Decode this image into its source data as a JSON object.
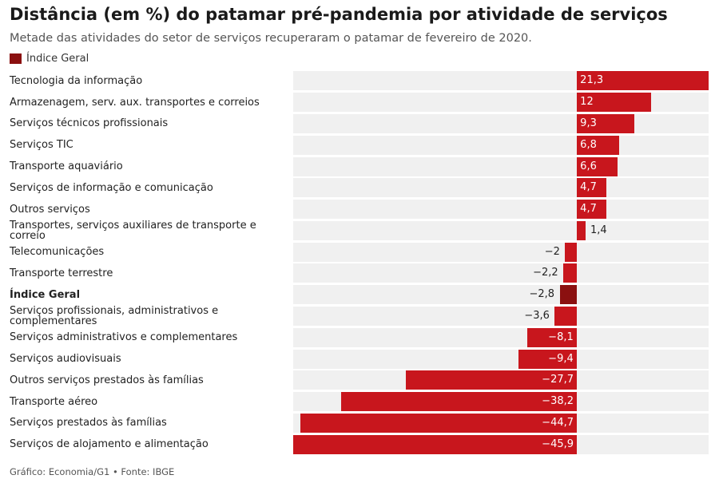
{
  "header": {
    "title": "Distância (em %) do patamar pré-pandemia por atividade de serviços",
    "subtitle": "Metade das atividades do setor de serviços recuperaram o patamar de fevereiro de 2020."
  },
  "legend": {
    "label": "Índice Geral",
    "color": "#8b1010"
  },
  "colors": {
    "bar": "#c8161d",
    "highlight": "#8b1010",
    "row_bg": "#f0f0f0"
  },
  "chart_data": {
    "type": "bar",
    "orientation": "horizontal",
    "title": "Distância (em %) do patamar pré-pandemia por atividade de serviços",
    "series_name": "Distância (em %)",
    "xlim": [
      -45.9,
      21.3
    ],
    "highlight_category": "Índice Geral",
    "categories": [
      "Tecnologia da informação",
      "Armazenagem, serv. aux. transportes e correios",
      "Serviços técnicos profissionais",
      "Serviços TIC",
      "Transporte aquaviário",
      "Serviços de informação e comunicação",
      "Outros serviços",
      "Transportes, serviços auxiliares de transporte e correio",
      "Telecomunicações",
      "Transporte terrestre",
      "Índice Geral",
      "Serviços profissionais, administrativos e complementares",
      "Serviços administrativos e complementares",
      "Serviços audiovisuais",
      "Outros serviços prestados às famílias",
      "Transporte aéreo",
      "Serviços prestados às famílias",
      "Serviços de alojamento e alimentação"
    ],
    "values": [
      21.3,
      12,
      9.3,
      6.8,
      6.6,
      4.7,
      4.7,
      1.4,
      -2,
      -2.2,
      -2.8,
      -3.6,
      -8.1,
      -9.4,
      -27.7,
      -38.2,
      -44.7,
      -45.9
    ],
    "value_labels": [
      "21,3",
      "12",
      "9,3",
      "6,8",
      "6,6",
      "4,7",
      "4,7",
      "1,4",
      "−2",
      "−2,2",
      "−2,8",
      "−3,6",
      "−8,1",
      "−9,4",
      "−27,7",
      "−38,2",
      "−44,7",
      "−45,9"
    ]
  },
  "footer": {
    "source": "Gráfico: Economia/G1 • Fonte: IBGE"
  }
}
